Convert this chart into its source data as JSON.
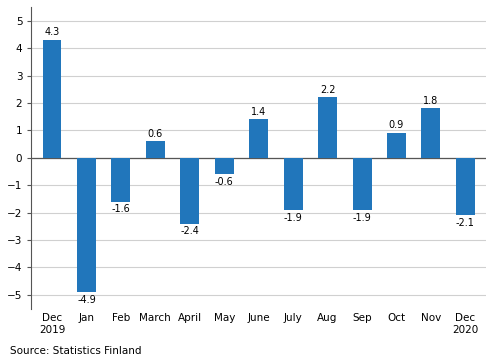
{
  "categories": [
    "Dec\n2019",
    "Jan",
    "Feb",
    "March",
    "April",
    "May",
    "June",
    "July",
    "Aug",
    "Sep",
    "Oct",
    "Nov",
    "Dec\n2020"
  ],
  "values": [
    4.3,
    -4.9,
    -1.6,
    0.6,
    -2.4,
    -0.6,
    1.4,
    -1.9,
    2.2,
    -1.9,
    0.9,
    1.8,
    -2.1
  ],
  "bar_color": "#2176bb",
  "ylim": [
    -5.5,
    5.5
  ],
  "yticks": [
    -5,
    -4,
    -3,
    -2,
    -1,
    0,
    1,
    2,
    3,
    4,
    5
  ],
  "source_text": "Source: Statistics Finland",
  "label_fontsize": 7,
  "tick_fontsize": 7.5,
  "source_fontsize": 7.5,
  "bar_width": 0.55
}
